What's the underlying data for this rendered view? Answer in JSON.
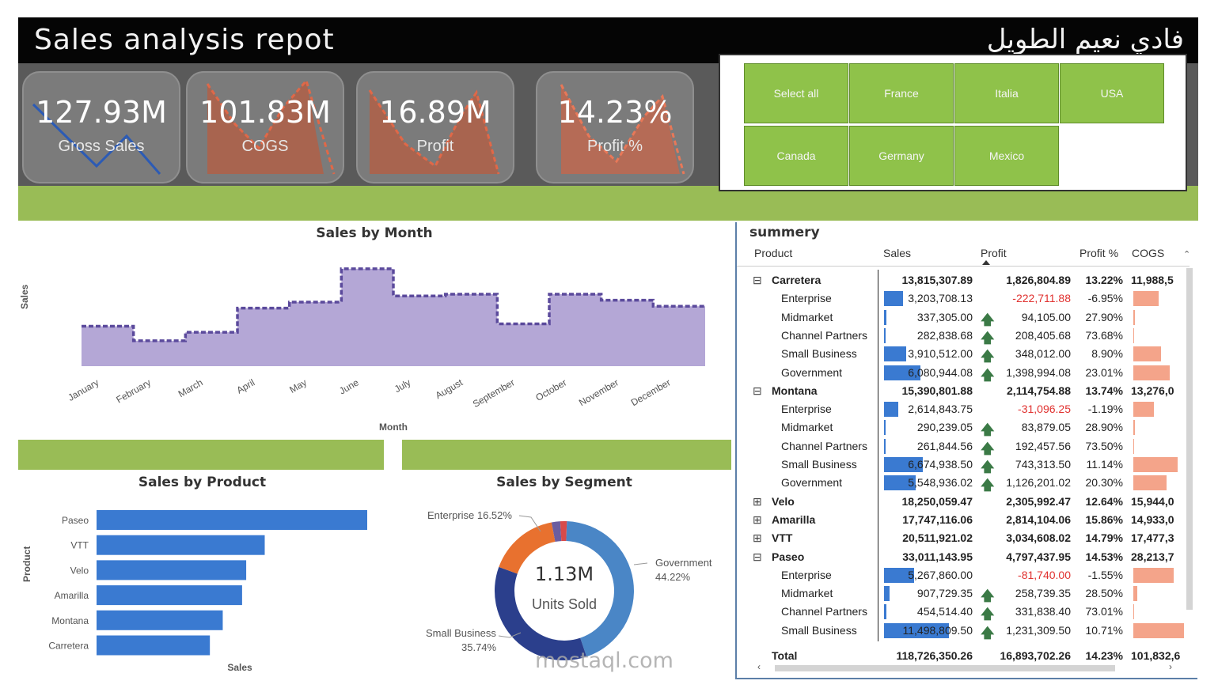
{
  "header": {
    "title": "Sales analysis repot",
    "author": "فادي نعيم الطويل"
  },
  "kpis": [
    {
      "value": "127.93M",
      "label": "Gross Sales"
    },
    {
      "value": "101.83M",
      "label": "COGS"
    },
    {
      "value": "16.89M",
      "label": "Profit"
    },
    {
      "value": "14.23%",
      "label": "Profit %"
    }
  ],
  "slicer": {
    "buttons": [
      "Select all",
      "France",
      "Italia",
      "USA",
      "Canada",
      "Germany",
      "Mexico"
    ]
  },
  "month_chart": {
    "title": "Sales by Month",
    "xlabel": "Month",
    "ylabel": "Sales",
    "months": [
      "January",
      "February",
      "March",
      "April",
      "May",
      "June",
      "July",
      "August",
      "September",
      "October",
      "November",
      "December"
    ]
  },
  "product_chart": {
    "title": "Sales by Product",
    "xlabel": "Sales",
    "ylabel": "Product",
    "categories": [
      "Paseo",
      "VTT",
      "Velo",
      "Amarilla",
      "Montana",
      "Carretera"
    ]
  },
  "segment_chart": {
    "title": "Sales by Segment",
    "center_value": "1.13M",
    "center_label": "Units Sold",
    "label_enterprise": "Enterprise 16.52%",
    "label_government_name": "Government",
    "label_government_pct": "44.22%",
    "label_small_name": "Small Business",
    "label_small_pct": "35.74%"
  },
  "chart_data": [
    {
      "type": "area",
      "title": "Sales by Month",
      "xlabel": "Month",
      "ylabel": "Sales",
      "categories": [
        "January",
        "February",
        "March",
        "April",
        "May",
        "June",
        "July",
        "August",
        "September",
        "October",
        "November",
        "December"
      ],
      "values": [
        6.6,
        4.2,
        5.6,
        9.6,
        10.6,
        16.1,
        11.6,
        11.9,
        7.0,
        11.9,
        10.9,
        9.9
      ]
    },
    {
      "type": "bar",
      "title": "Sales by Product",
      "xlabel": "Sales",
      "ylabel": "Product",
      "categories": [
        "Paseo",
        "VTT",
        "Velo",
        "Amarilla",
        "Montana",
        "Carretera"
      ],
      "values": [
        33.01,
        20.51,
        18.25,
        17.75,
        15.39,
        13.82
      ]
    },
    {
      "type": "pie",
      "title": "Sales by Segment",
      "series": [
        {
          "name": "Government",
          "values": [
            44.22
          ]
        },
        {
          "name": "Small Business",
          "values": [
            35.74
          ]
        },
        {
          "name": "Enterprise",
          "values": [
            16.52
          ]
        },
        {
          "name": "Channel Partners",
          "values": [
            2.0
          ]
        },
        {
          "name": "Midmarket",
          "values": [
            1.52
          ]
        }
      ]
    }
  ],
  "table": {
    "title": "summery",
    "columns": [
      "Product",
      "Sales",
      "Profit",
      "Profit %",
      "COGS"
    ],
    "rows": [
      {
        "name": "Carretera",
        "level": 0,
        "exp": "⊟",
        "sales": "13,815,307.89",
        "profit": "1,826,804.89",
        "pct": "13.22%",
        "cogs": "11,988,5",
        "sbar": 0,
        "cbar": 0,
        "neg": false
      },
      {
        "name": "Enterprise",
        "level": 1,
        "sales": "3,203,708.13",
        "profit": "-222,711.88",
        "pct": "-6.95%",
        "cogs": "",
        "sbar": 0.28,
        "cbar": 0.5,
        "neg": true
      },
      {
        "name": "Midmarket",
        "level": 1,
        "sales": "337,305.00",
        "profit": "94,105.00",
        "pct": "27.90%",
        "cogs": "",
        "sbar": 0.03,
        "cbar": 0.03,
        "neg": false,
        "up": true
      },
      {
        "name": "Channel Partners",
        "level": 1,
        "sales": "282,838.68",
        "profit": "208,405.68",
        "pct": "73.68%",
        "cogs": "",
        "sbar": 0.02,
        "cbar": 0.01,
        "neg": false,
        "up": true
      },
      {
        "name": "Small Business",
        "level": 1,
        "sales": "3,910,512.00",
        "profit": "348,012.00",
        "pct": "8.90%",
        "cogs": "",
        "sbar": 0.33,
        "cbar": 0.55,
        "neg": false,
        "up": true
      },
      {
        "name": "Government",
        "level": 1,
        "sales": "6,080,944.08",
        "profit": "1,398,994.08",
        "pct": "23.01%",
        "cogs": "",
        "sbar": 0.55,
        "cbar": 0.72,
        "neg": false,
        "up": true
      },
      {
        "name": "Montana",
        "level": 0,
        "exp": "⊟",
        "sales": "15,390,801.88",
        "profit": "2,114,754.88",
        "pct": "13.74%",
        "cogs": "13,276,0",
        "sbar": 0,
        "cbar": 0,
        "neg": false
      },
      {
        "name": "Enterprise",
        "level": 1,
        "sales": "2,614,843.75",
        "profit": "-31,096.25",
        "pct": "-1.19%",
        "cogs": "",
        "sbar": 0.22,
        "cbar": 0.4,
        "neg": true
      },
      {
        "name": "Midmarket",
        "level": 1,
        "sales": "290,239.05",
        "profit": "83,879.05",
        "pct": "28.90%",
        "cogs": "",
        "sbar": 0.02,
        "cbar": 0.03,
        "neg": false,
        "up": true
      },
      {
        "name": "Channel Partners",
        "level": 1,
        "sales": "261,844.56",
        "profit": "192,457.56",
        "pct": "73.50%",
        "cogs": "",
        "sbar": 0.02,
        "cbar": 0.01,
        "neg": false,
        "up": true
      },
      {
        "name": "Small Business",
        "level": 1,
        "sales": "6,674,938.50",
        "profit": "743,313.50",
        "pct": "11.14%",
        "cogs": "",
        "sbar": 0.58,
        "cbar": 0.88,
        "neg": false,
        "up": true
      },
      {
        "name": "Government",
        "level": 1,
        "sales": "5,548,936.02",
        "profit": "1,126,201.02",
        "pct": "20.30%",
        "cogs": "",
        "sbar": 0.48,
        "cbar": 0.65,
        "neg": false,
        "up": true
      },
      {
        "name": "Velo",
        "level": 0,
        "exp": "⊞",
        "sales": "18,250,059.47",
        "profit": "2,305,992.47",
        "pct": "12.64%",
        "cogs": "15,944,0",
        "sbar": 0,
        "cbar": 0,
        "neg": false
      },
      {
        "name": "Amarilla",
        "level": 0,
        "exp": "⊞",
        "sales": "17,747,116.06",
        "profit": "2,814,104.06",
        "pct": "15.86%",
        "cogs": "14,933,0",
        "sbar": 0,
        "cbar": 0,
        "neg": false
      },
      {
        "name": "VTT",
        "level": 0,
        "exp": "⊞",
        "sales": "20,511,921.02",
        "profit": "3,034,608.02",
        "pct": "14.79%",
        "cogs": "17,477,3",
        "sbar": 0,
        "cbar": 0,
        "neg": false
      },
      {
        "name": "Paseo",
        "level": 0,
        "exp": "⊟",
        "sales": "33,011,143.95",
        "profit": "4,797,437.95",
        "pct": "14.53%",
        "cogs": "28,213,7",
        "sbar": 0,
        "cbar": 0,
        "neg": false
      },
      {
        "name": "Enterprise",
        "level": 1,
        "sales": "5,267,860.00",
        "profit": "-81,740.00",
        "pct": "-1.55%",
        "cogs": "",
        "sbar": 0.45,
        "cbar": 0.8,
        "neg": true
      },
      {
        "name": "Midmarket",
        "level": 1,
        "sales": "907,729.35",
        "profit": "258,739.35",
        "pct": "28.50%",
        "cogs": "",
        "sbar": 0.08,
        "cbar": 0.08,
        "neg": false,
        "up": true
      },
      {
        "name": "Channel Partners",
        "level": 1,
        "sales": "454,514.40",
        "profit": "331,838.40",
        "pct": "73.01%",
        "cogs": "",
        "sbar": 0.04,
        "cbar": 0.02,
        "neg": false,
        "up": true
      },
      {
        "name": "Small Business",
        "level": 1,
        "sales": "11,498,809.50",
        "profit": "1,231,309.50",
        "pct": "10.71%",
        "cogs": "",
        "sbar": 0.98,
        "cbar": 1.0,
        "neg": false,
        "up": true
      }
    ],
    "total": {
      "name": "Total",
      "sales": "118,726,350.26",
      "profit": "16,893,702.26",
      "pct": "14.23%",
      "cogs": "101,832,6"
    }
  },
  "watermark": {
    "text": "mostaql.com"
  },
  "colors": {
    "green": "#99bc56",
    "button": "#8fc24a",
    "bar": "#3a7ad1",
    "area": "#b4a7d6",
    "area_line": "#5b4a9c",
    "kpi_fill": "#e07a5f"
  }
}
